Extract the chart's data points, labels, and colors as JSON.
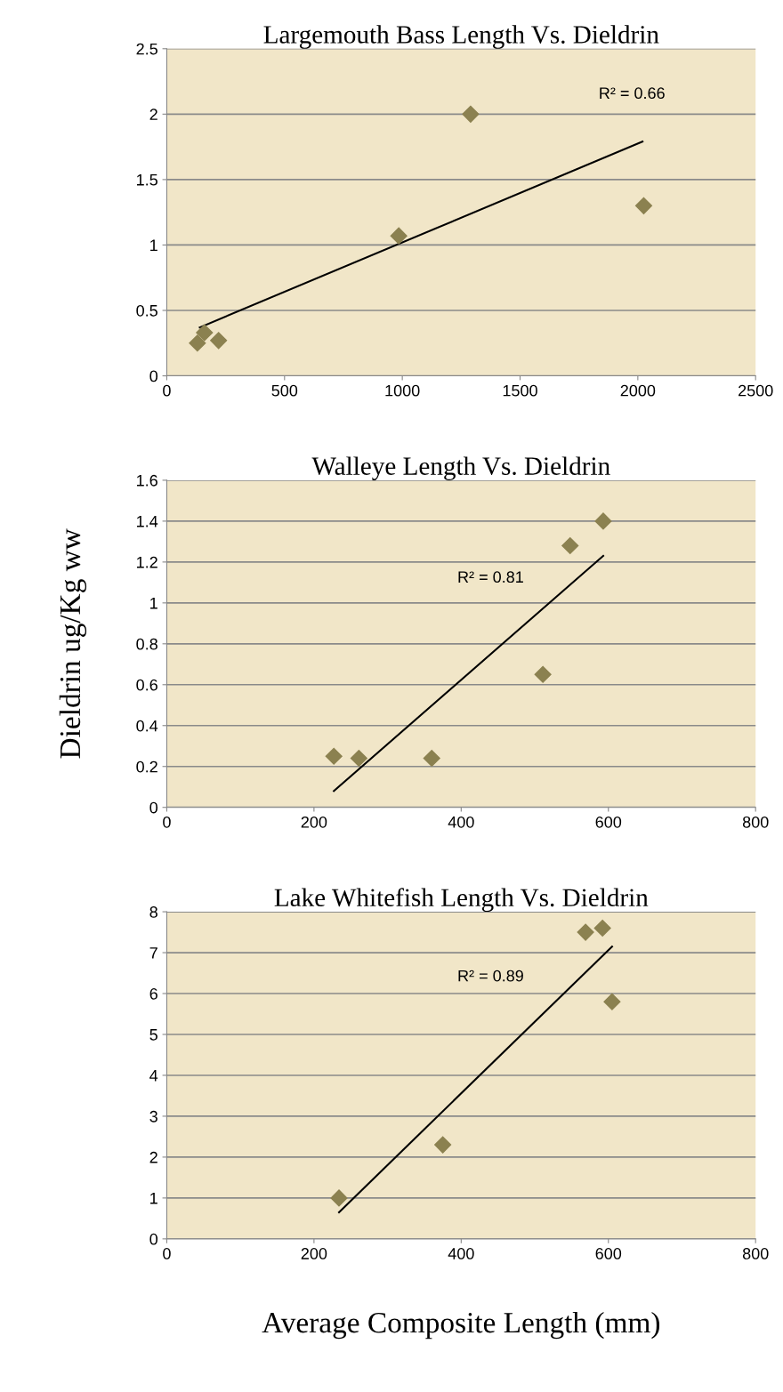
{
  "chart_data": [
    {
      "type": "scatter",
      "title": "Largemouth Bass Length Vs. Dieldrin",
      "marker": "diamond",
      "grid": "y",
      "xlim": [
        0,
        2500
      ],
      "xticks": [
        0,
        500,
        1000,
        1500,
        2000,
        2500
      ],
      "ylim": [
        0,
        2.5
      ],
      "yticks": [
        0,
        0.5,
        1,
        1.5,
        2,
        2.5
      ],
      "series": [
        {
          "color": "#8b8150",
          "x": [
            130,
            160,
            220,
            985,
            1290,
            2025
          ],
          "values": [
            0.25,
            0.33,
            0.27,
            1.07,
            2.0,
            1.3
          ]
        },
        {
          "type": "line",
          "color": "#000000",
          "marker": "none",
          "x": [
            140,
            2020
          ],
          "values": [
            0.37,
            1.79
          ]
        }
      ],
      "annotations": [
        "R² = 0.66"
      ]
    },
    {
      "type": "scatter",
      "title": "Walleye Length Vs. Dieldrin",
      "ylabel": "Dieldrin ug/Kg ww",
      "marker": "diamond",
      "grid": "y",
      "xlim": [
        0,
        800
      ],
      "xticks": [
        0,
        200,
        400,
        600,
        800
      ],
      "ylim": [
        0,
        1.6
      ],
      "yticks": [
        0,
        0.2,
        0.4,
        0.6,
        0.8,
        1,
        1.2,
        1.4,
        1.6
      ],
      "series": [
        {
          "color": "#8b8150",
          "x": [
            227,
            261,
            360,
            511,
            548,
            593
          ],
          "values": [
            0.25,
            0.24,
            0.24,
            0.65,
            1.28,
            1.4
          ]
        },
        {
          "type": "line",
          "color": "#000000",
          "marker": "none",
          "x": [
            227,
            593
          ],
          "values": [
            0.08,
            1.23
          ]
        }
      ],
      "annotations": [
        "R² = 0.81"
      ]
    },
    {
      "type": "scatter",
      "title": "Lake Whitefish Length Vs. Dieldrin",
      "xlabel": "Average Composite Length (mm)",
      "marker": "diamond",
      "grid": "y",
      "xlim": [
        0,
        800
      ],
      "xticks": [
        0,
        200,
        400,
        600,
        800
      ],
      "ylim": [
        0,
        8
      ],
      "yticks": [
        0,
        1,
        2,
        3,
        4,
        5,
        6,
        7,
        8
      ],
      "series": [
        {
          "color": "#8b8150",
          "x": [
            234,
            375,
            569,
            592,
            605
          ],
          "values": [
            1.0,
            2.3,
            7.5,
            7.6,
            5.8
          ]
        },
        {
          "type": "line",
          "color": "#000000",
          "marker": "none",
          "x": [
            234,
            605
          ],
          "values": [
            0.65,
            7.15
          ]
        }
      ],
      "annotations": [
        "R² = 0.89"
      ]
    }
  ]
}
